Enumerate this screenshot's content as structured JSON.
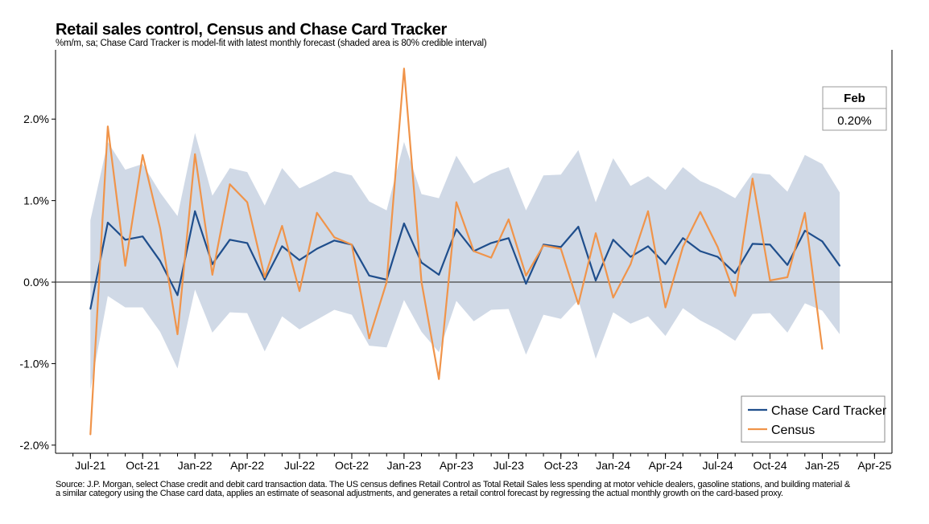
{
  "chart_data": {
    "type": "line",
    "title": "Retail sales control, Census and Chase Card Tracker",
    "subtitle": "%m/m, sa; Chase Card Tracker is model-fit with latest monthly forecast (shaded area is 80% credible interval)",
    "x": [
      "2021-07",
      "2021-08",
      "2021-09",
      "2021-10",
      "2021-11",
      "2021-12",
      "2022-01",
      "2022-02",
      "2022-03",
      "2022-04",
      "2022-05",
      "2022-06",
      "2022-07",
      "2022-08",
      "2022-09",
      "2022-10",
      "2022-11",
      "2022-12",
      "2023-01",
      "2023-02",
      "2023-03",
      "2023-04",
      "2023-05",
      "2023-06",
      "2023-07",
      "2023-08",
      "2023-09",
      "2023-10",
      "2023-11",
      "2023-12",
      "2024-01",
      "2024-02",
      "2024-03",
      "2024-04",
      "2024-05",
      "2024-06",
      "2024-07",
      "2024-08",
      "2024-09",
      "2024-10",
      "2024-11",
      "2024-12",
      "2025-01",
      "2025-02"
    ],
    "x_tick_labels": [
      "Jul-21",
      "Oct-21",
      "Jan-22",
      "Apr-22",
      "Jul-22",
      "Oct-22",
      "Jan-23",
      "Apr-23",
      "Jul-23",
      "Oct-23",
      "Jan-24",
      "Apr-24",
      "Jul-24",
      "Oct-24",
      "Jan-25",
      "Apr-25"
    ],
    "x_ticks": [
      "2021-07",
      "2021-10",
      "2022-01",
      "2022-04",
      "2022-07",
      "2022-10",
      "2023-01",
      "2023-04",
      "2023-07",
      "2023-10",
      "2024-01",
      "2024-04",
      "2024-07",
      "2024-10",
      "2025-01",
      "2025-04"
    ],
    "xlim": [
      "2021-05",
      "2025-05"
    ],
    "y_tick_labels": [
      "-2.0%",
      "-1.0%",
      "0.0%",
      "1.0%",
      "2.0%"
    ],
    "y_ticks": [
      -2,
      -1,
      0,
      1,
      2
    ],
    "ylim": [
      -2.1,
      2.85
    ],
    "series": [
      {
        "name": "Chase Card Tracker",
        "color": "#1f4e8c",
        "values": [
          -0.33,
          0.73,
          0.52,
          0.56,
          0.26,
          -0.16,
          0.87,
          0.22,
          0.52,
          0.48,
          0.03,
          0.44,
          0.27,
          0.41,
          0.51,
          0.46,
          0.08,
          0.03,
          0.72,
          0.24,
          0.09,
          0.65,
          0.38,
          0.48,
          0.54,
          -0.02,
          0.46,
          0.43,
          0.68,
          0.02,
          0.52,
          0.31,
          0.44,
          0.22,
          0.54,
          0.38,
          0.31,
          0.11,
          0.47,
          0.46,
          0.21,
          0.63,
          0.5,
          0.2
        ]
      },
      {
        "name": "Census",
        "color": "#f0944a",
        "values": [
          -1.87,
          1.91,
          0.2,
          1.56,
          0.66,
          -0.64,
          1.57,
          0.09,
          1.2,
          0.98,
          0.06,
          0.69,
          -0.11,
          0.85,
          0.55,
          0.46,
          -0.69,
          0.0,
          2.62,
          0.0,
          -1.19,
          0.98,
          0.38,
          0.3,
          0.77,
          0.08,
          0.45,
          0.41,
          -0.27,
          0.6,
          -0.19,
          0.22,
          0.87,
          -0.31,
          0.43,
          0.86,
          0.43,
          -0.17,
          1.27,
          0.02,
          0.06,
          0.85,
          -0.82,
          null
        ]
      }
    ],
    "band": {
      "name": "80% credible interval",
      "color": "#d0d9e6",
      "upper": [
        0.76,
        1.72,
        1.38,
        1.45,
        1.1,
        0.81,
        1.83,
        1.06,
        1.4,
        1.35,
        0.94,
        1.4,
        1.15,
        1.25,
        1.36,
        1.31,
        0.99,
        0.88,
        1.72,
        1.08,
        1.03,
        1.55,
        1.21,
        1.33,
        1.41,
        0.88,
        1.31,
        1.32,
        1.62,
        0.98,
        1.52,
        1.18,
        1.3,
        1.13,
        1.41,
        1.24,
        1.15,
        1.03,
        1.34,
        1.32,
        1.11,
        1.56,
        1.45,
        1.1
      ],
      "lower": [
        -1.32,
        -0.17,
        -0.31,
        -0.31,
        -0.61,
        -1.06,
        -0.09,
        -0.62,
        -0.37,
        -0.38,
        -0.85,
        -0.42,
        -0.58,
        -0.46,
        -0.34,
        -0.4,
        -0.78,
        -0.8,
        -0.22,
        -0.61,
        -0.86,
        -0.23,
        -0.48,
        -0.34,
        -0.33,
        -0.89,
        -0.4,
        -0.45,
        -0.22,
        -0.94,
        -0.37,
        -0.51,
        -0.42,
        -0.66,
        -0.32,
        -0.47,
        -0.58,
        -0.72,
        -0.39,
        -0.38,
        -0.62,
        -0.26,
        -0.35,
        -0.64
      ]
    },
    "callout": {
      "header": "Feb",
      "value": "0.20%"
    },
    "legend": {
      "placement": "bottom-right"
    },
    "grid": false,
    "zero_line": true
  },
  "footer": {
    "source_line1": "Source: J.P. Morgan, select Chase credit and debit card transaction data. The US census defines Retail Control as Total Retail Sales less spending at motor vehicle dealers, gasoline stations, and building material &",
    "source_line2": " a similar category using the Chase card data, applies an estimate of seasonal adjustments, and generates a retail control forecast by regressing the actual monthly growth on the card-based proxy."
  }
}
